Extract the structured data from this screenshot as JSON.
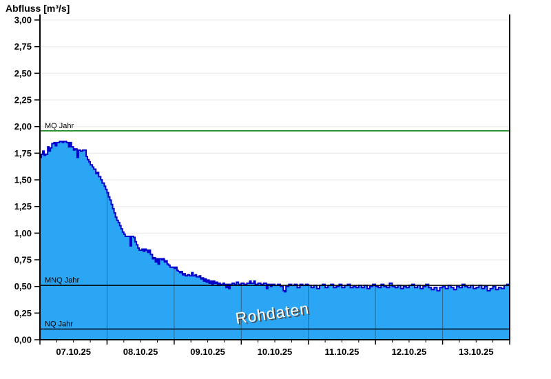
{
  "chart_data": {
    "type": "area",
    "title": "Abfluss [m³/s]",
    "watermark": "Rohdaten",
    "x_axis": {
      "tick_labels": [
        "07.10.25",
        "08.10.25",
        "09.10.25",
        "10.10.25",
        "11.10.25",
        "12.10.25",
        "13.10.25"
      ],
      "days": 7,
      "hours_total": 168,
      "minor_tick_hours": 6
    },
    "y_axis": {
      "min": 0,
      "max": 3,
      "step": 0.25,
      "tick_labels": [
        "0,00",
        "0,25",
        "0,50",
        "0,75",
        "1,00",
        "1,25",
        "1,50",
        "1,75",
        "2,00",
        "2,25",
        "2,50",
        "2,75",
        "3,00"
      ]
    },
    "reference_lines": [
      {
        "label": "MQ Jahr",
        "value": 1.96,
        "color": "#007700"
      },
      {
        "label": "MNQ Jahr",
        "value": 0.51,
        "color": "#000000"
      },
      {
        "label": "NQ Jahr",
        "value": 0.1,
        "color": "#000000"
      }
    ],
    "grid_color": "#e8e8e8",
    "day_grid_color": "#3c3c3c",
    "series": {
      "name": "Abfluss Rohdaten",
      "unit": "m³/s",
      "color_fill": "#2ba6f5",
      "color_line": "#0000cc",
      "points_hour_value": [
        [
          0,
          1.71
        ],
        [
          0.5,
          1.74
        ],
        [
          1,
          1.77
        ],
        [
          1.5,
          1.73
        ],
        [
          2,
          1.74
        ],
        [
          2.75,
          1.81
        ],
        [
          3.25,
          1.77
        ],
        [
          3.75,
          1.8
        ],
        [
          4.25,
          1.84
        ],
        [
          5,
          1.85
        ],
        [
          5.5,
          1.82
        ],
        [
          6,
          1.85
        ],
        [
          7,
          1.86
        ],
        [
          8,
          1.85
        ],
        [
          8.5,
          1.86
        ],
        [
          9.5,
          1.85
        ],
        [
          10.25,
          1.81
        ],
        [
          10.75,
          1.85
        ],
        [
          11.25,
          1.81
        ],
        [
          12,
          1.78
        ],
        [
          12.5,
          1.79
        ],
        [
          13.25,
          1.71
        ],
        [
          13.75,
          1.78
        ],
        [
          14.5,
          1.77
        ],
        [
          15.25,
          1.78
        ],
        [
          16,
          1.78
        ],
        [
          16.5,
          1.72
        ],
        [
          17,
          1.69
        ],
        [
          17.5,
          1.67
        ],
        [
          18,
          1.64
        ],
        [
          18.75,
          1.62
        ],
        [
          19.25,
          1.6
        ],
        [
          20,
          1.56
        ],
        [
          20.5,
          1.57
        ],
        [
          21,
          1.53
        ],
        [
          21.75,
          1.5
        ],
        [
          22.25,
          1.47
        ],
        [
          23,
          1.44
        ],
        [
          23.5,
          1.41
        ],
        [
          24,
          1.38
        ],
        [
          24.5,
          1.34
        ],
        [
          25,
          1.31
        ],
        [
          25.5,
          1.27
        ],
        [
          26,
          1.23
        ],
        [
          26.5,
          1.19
        ],
        [
          27,
          1.15
        ],
        [
          27.5,
          1.12
        ],
        [
          28,
          1.1
        ],
        [
          28.5,
          1.07
        ],
        [
          29,
          1.04
        ],
        [
          29.5,
          1.01
        ],
        [
          30,
          0.99
        ],
        [
          30.5,
          0.97
        ],
        [
          31.5,
          0.97
        ],
        [
          32.25,
          0.88
        ],
        [
          32.75,
          0.97
        ],
        [
          33.5,
          0.96
        ],
        [
          34,
          0.92
        ],
        [
          34.5,
          0.89
        ],
        [
          35,
          0.86
        ],
        [
          35.5,
          0.84
        ],
        [
          36.5,
          0.85
        ],
        [
          37,
          0.83
        ],
        [
          37.5,
          0.85
        ],
        [
          38,
          0.84
        ],
        [
          38.5,
          0.82
        ],
        [
          39,
          0.84
        ],
        [
          39.5,
          0.8
        ],
        [
          40.25,
          0.76
        ],
        [
          40.75,
          0.77
        ],
        [
          41.25,
          0.73
        ],
        [
          41.75,
          0.76
        ],
        [
          42.25,
          0.71
        ],
        [
          42.75,
          0.76
        ],
        [
          43.5,
          0.75
        ],
        [
          44,
          0.76
        ],
        [
          44.5,
          0.73
        ],
        [
          45,
          0.74
        ],
        [
          45.5,
          0.71
        ],
        [
          46,
          0.7
        ],
        [
          46.5,
          0.68
        ],
        [
          47.5,
          0.68
        ],
        [
          48,
          0.67
        ],
        [
          48.5,
          0.68
        ],
        [
          49,
          0.65
        ],
        [
          49.5,
          0.64
        ],
        [
          50,
          0.63
        ],
        [
          50.5,
          0.64
        ],
        [
          51,
          0.61
        ],
        [
          51.5,
          0.62
        ],
        [
          52,
          0.6
        ],
        [
          52.75,
          0.61
        ],
        [
          53.5,
          0.6
        ],
        [
          54.25,
          0.63
        ],
        [
          54.75,
          0.6
        ],
        [
          55.5,
          0.61
        ],
        [
          56,
          0.59
        ],
        [
          57,
          0.6
        ],
        [
          57.5,
          0.57
        ],
        [
          58,
          0.58
        ],
        [
          58.5,
          0.55
        ],
        [
          59,
          0.57
        ],
        [
          59.5,
          0.54
        ],
        [
          60,
          0.56
        ],
        [
          60.5,
          0.53
        ],
        [
          61,
          0.55
        ],
        [
          61.5,
          0.52
        ],
        [
          62,
          0.55
        ],
        [
          62.5,
          0.53
        ],
        [
          63,
          0.54
        ],
        [
          63.5,
          0.51
        ],
        [
          64,
          0.53
        ],
        [
          64.5,
          0.52
        ],
        [
          65.5,
          0.53
        ],
        [
          66,
          0.52
        ],
        [
          66.5,
          0.49
        ],
        [
          67,
          0.52
        ],
        [
          67.5,
          0.48
        ],
        [
          68,
          0.52
        ],
        [
          68.75,
          0.53
        ],
        [
          69.5,
          0.52
        ],
        [
          70.25,
          0.54
        ],
        [
          71,
          0.52
        ],
        [
          72,
          0.53
        ],
        [
          73,
          0.52
        ],
        [
          74,
          0.53
        ],
        [
          75,
          0.55
        ],
        [
          75.5,
          0.53
        ],
        [
          76.5,
          0.55
        ],
        [
          77,
          0.52
        ],
        [
          78,
          0.53
        ],
        [
          79,
          0.52
        ],
        [
          80,
          0.53
        ],
        [
          81,
          0.48
        ],
        [
          81.5,
          0.52
        ],
        [
          82.5,
          0.5
        ],
        [
          83,
          0.52
        ],
        [
          84,
          0.51
        ],
        [
          85,
          0.52
        ],
        [
          86,
          0.5
        ],
        [
          87,
          0.46
        ],
        [
          87.5,
          0.45
        ],
        [
          88,
          0.5
        ],
        [
          89,
          0.52
        ],
        [
          90,
          0.51
        ],
        [
          91,
          0.52
        ],
        [
          92,
          0.49
        ],
        [
          93,
          0.52
        ],
        [
          94,
          0.51
        ],
        [
          95,
          0.52
        ],
        [
          96,
          0.51
        ],
        [
          97,
          0.49
        ],
        [
          98,
          0.51
        ],
        [
          99,
          0.48
        ],
        [
          100,
          0.51
        ],
        [
          101,
          0.52
        ],
        [
          102,
          0.49
        ],
        [
          103,
          0.51
        ],
        [
          104,
          0.52
        ],
        [
          105,
          0.49
        ],
        [
          106,
          0.5
        ],
        [
          107,
          0.52
        ],
        [
          108,
          0.49
        ],
        [
          109,
          0.51
        ],
        [
          110,
          0.52
        ],
        [
          111,
          0.49
        ],
        [
          112,
          0.5
        ],
        [
          113,
          0.49
        ],
        [
          114,
          0.51
        ],
        [
          115,
          0.49
        ],
        [
          116,
          0.51
        ],
        [
          117,
          0.48
        ],
        [
          118,
          0.5
        ],
        [
          119,
          0.52
        ],
        [
          120,
          0.5
        ],
        [
          121,
          0.49
        ],
        [
          122,
          0.52
        ],
        [
          123,
          0.5
        ],
        [
          124,
          0.49
        ],
        [
          125,
          0.53
        ],
        [
          126,
          0.5
        ],
        [
          127,
          0.49
        ],
        [
          128,
          0.51
        ],
        [
          129,
          0.48
        ],
        [
          130,
          0.5
        ],
        [
          131,
          0.49
        ],
        [
          132,
          0.51
        ],
        [
          133,
          0.52
        ],
        [
          134,
          0.49
        ],
        [
          135,
          0.51
        ],
        [
          136,
          0.48
        ],
        [
          137,
          0.5
        ],
        [
          138,
          0.52
        ],
        [
          139,
          0.49
        ],
        [
          140,
          0.47
        ],
        [
          141,
          0.49
        ],
        [
          142,
          0.46
        ],
        [
          143,
          0.49
        ],
        [
          144,
          0.5
        ],
        [
          145,
          0.48
        ],
        [
          146,
          0.51
        ],
        [
          147,
          0.49
        ],
        [
          148,
          0.47
        ],
        [
          149,
          0.5
        ],
        [
          150,
          0.49
        ],
        [
          151,
          0.52
        ],
        [
          152,
          0.5
        ],
        [
          153,
          0.49
        ],
        [
          154,
          0.51
        ],
        [
          155,
          0.48
        ],
        [
          156,
          0.49
        ],
        [
          157,
          0.51
        ],
        [
          158,
          0.48
        ],
        [
          159,
          0.5
        ],
        [
          160,
          0.46
        ],
        [
          161,
          0.48
        ],
        [
          162,
          0.5
        ],
        [
          163,
          0.47
        ],
        [
          164,
          0.49
        ],
        [
          165,
          0.48
        ],
        [
          166,
          0.51
        ],
        [
          167,
          0.52
        ],
        [
          168,
          0.53
        ]
      ]
    }
  }
}
